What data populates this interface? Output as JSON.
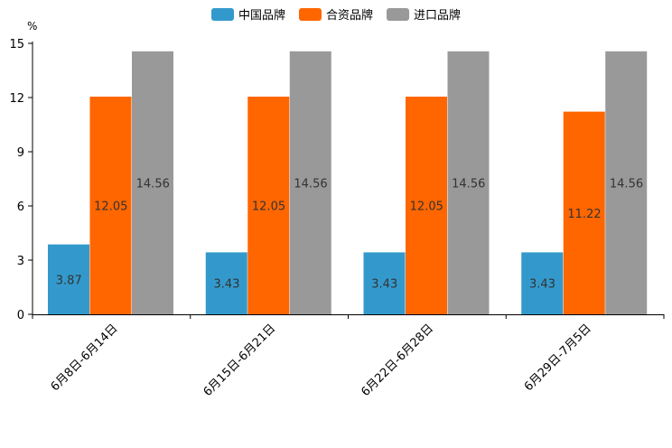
{
  "chart_data": {
    "type": "bar",
    "title": "",
    "xlabel": "",
    "ylabel": "%",
    "ylim": [
      0,
      15
    ],
    "yticks": [
      0,
      3,
      6,
      9,
      12,
      15
    ],
    "grid": false,
    "legend_position": "top-center",
    "categories": [
      "6月8日-6月14日",
      "6月15日-6月21日",
      "6月22日-6月28日",
      "6月29日-7月5日"
    ],
    "series": [
      {
        "name": "中国品牌",
        "color": "#3399cc",
        "values": [
          3.87,
          3.43,
          3.43,
          3.43
        ]
      },
      {
        "name": "合资品牌",
        "color": "#ff6600",
        "values": [
          12.05,
          12.05,
          12.05,
          11.22
        ]
      },
      {
        "name": "进口品牌",
        "color": "#999999",
        "values": [
          14.56,
          14.56,
          14.56,
          14.56
        ]
      }
    ]
  }
}
